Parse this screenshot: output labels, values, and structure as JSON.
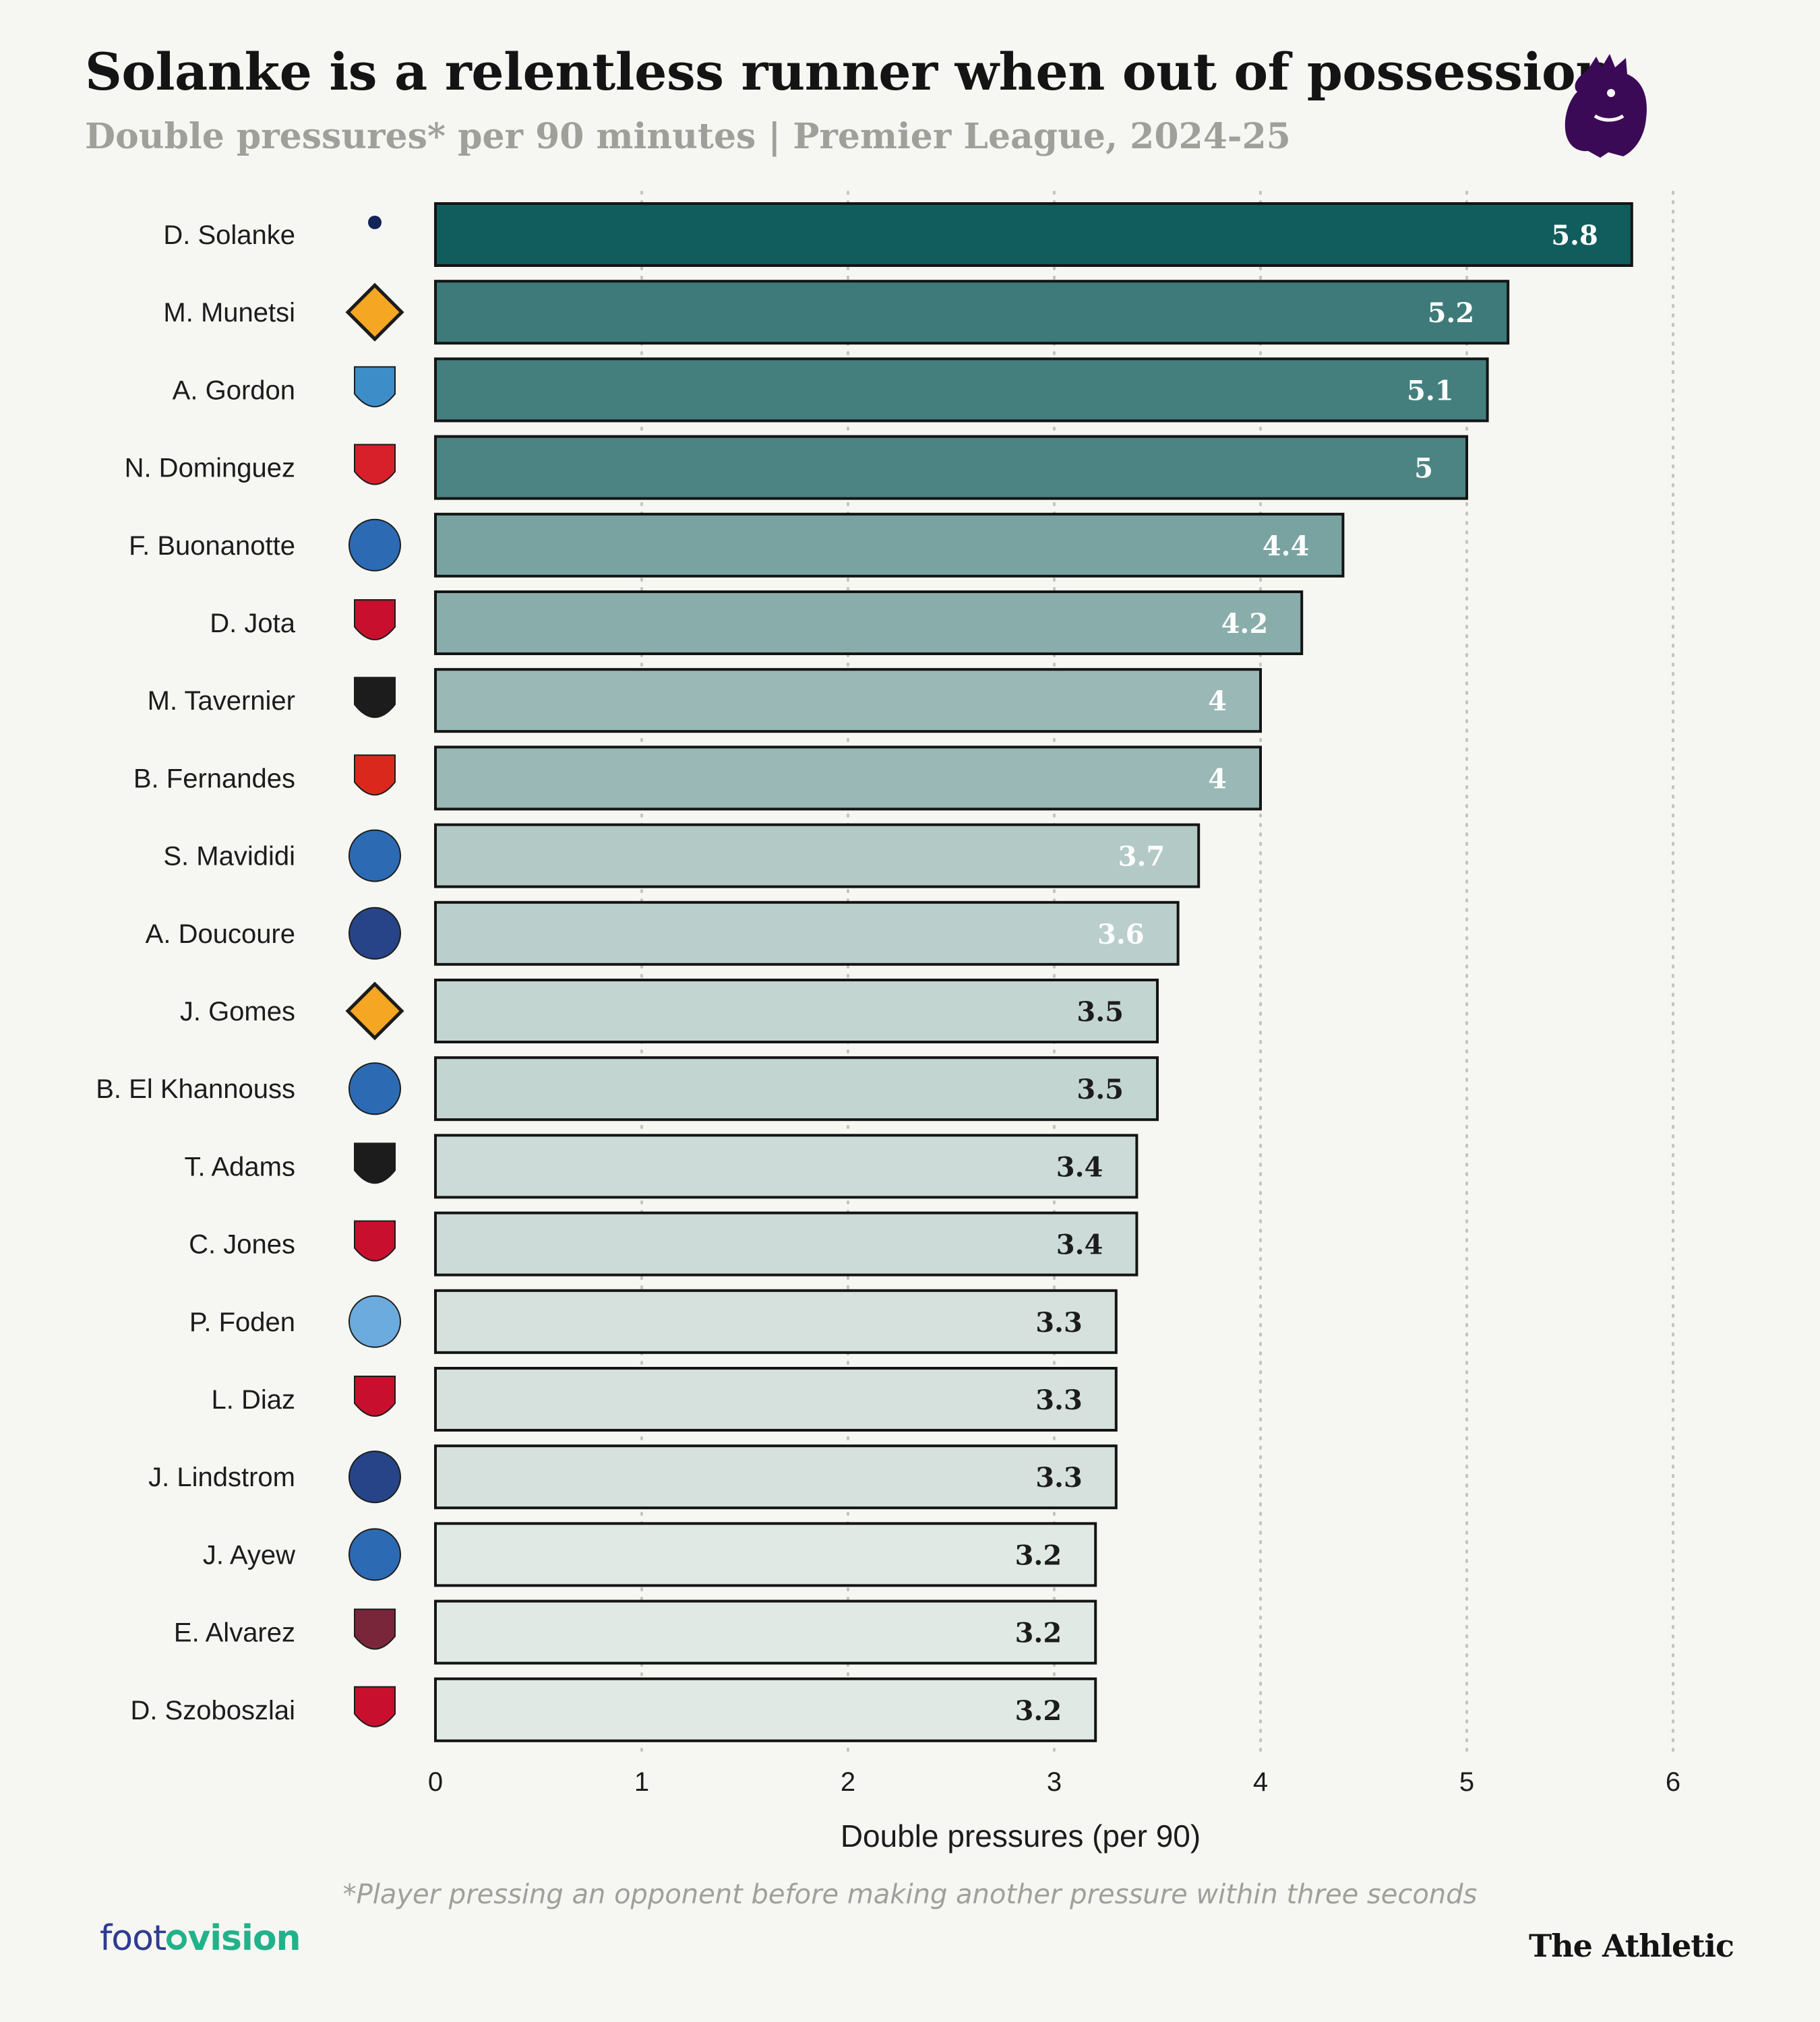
{
  "header": {
    "title": "Solanke is a relentless runner when out of possession",
    "subtitle": "Double pressures* per 90 minutes | Premier League, 2024-25",
    "logo_icon": "premier-league-lion-icon"
  },
  "chart_data": {
    "type": "bar",
    "orientation": "horizontal",
    "categories": [
      "D. Solanke",
      "M. Munetsi",
      "A. Gordon",
      "N. Dominguez",
      "F. Buonanotte",
      "D. Jota",
      "M. Tavernier",
      "B. Fernandes",
      "S. Mavididi",
      "A. Doucoure",
      "J. Gomes",
      "B. El Khannouss",
      "T. Adams",
      "C. Jones",
      "P. Foden",
      "L. Diaz",
      "J. Lindstrom",
      "J. Ayew",
      "E. Alvarez",
      "D. Szoboszlai"
    ],
    "values": [
      5.8,
      5.2,
      5.1,
      5,
      4.4,
      4.2,
      4,
      4,
      3.7,
      3.6,
      3.5,
      3.5,
      3.4,
      3.4,
      3.3,
      3.3,
      3.3,
      3.2,
      3.2,
      3.2
    ],
    "value_labels": [
      "5.8",
      "5.2",
      "5.1",
      "5",
      "4.4",
      "4.2",
      "4",
      "4",
      "3.7",
      "3.6",
      "3.5",
      "3.5",
      "3.4",
      "3.4",
      "3.3",
      "3.3",
      "3.3",
      "3.2",
      "3.2",
      "3.2"
    ],
    "team_icons": [
      "tottenham-crest-icon",
      "wolves-crest-icon",
      "newcastle-crest-icon",
      "nottingham-forest-crest-icon",
      "leicester-crest-icon",
      "liverpool-crest-icon",
      "bournemouth-crest-icon",
      "manchester-united-crest-icon",
      "leicester-crest-icon",
      "everton-crest-icon",
      "wolves-crest-icon",
      "leicester-crest-icon",
      "bournemouth-crest-icon",
      "liverpool-crest-icon",
      "manchester-city-crest-icon",
      "liverpool-crest-icon",
      "everton-crest-icon",
      "leicester-crest-icon",
      "west-ham-crest-icon",
      "liverpool-crest-icon"
    ],
    "xlabel": "Double pressures (per 90)",
    "xlim": [
      0,
      6
    ],
    "xticks": [
      "0",
      "1",
      "2",
      "3",
      "4",
      "5",
      "6"
    ],
    "grid": "vertical dotted",
    "colors": {
      "bar_high": "#115c5c",
      "bar_low": "#e1e9e5",
      "bar_outline": "#141414",
      "label_light": "#ffffff",
      "label_dark": "#1c1c1c"
    }
  },
  "footer": {
    "footnote": "*Player pressing an opponent before making another pressure within three seconds",
    "source_logo_start": "foot",
    "source_logo_end": "vision",
    "brand": "The Athletic"
  }
}
